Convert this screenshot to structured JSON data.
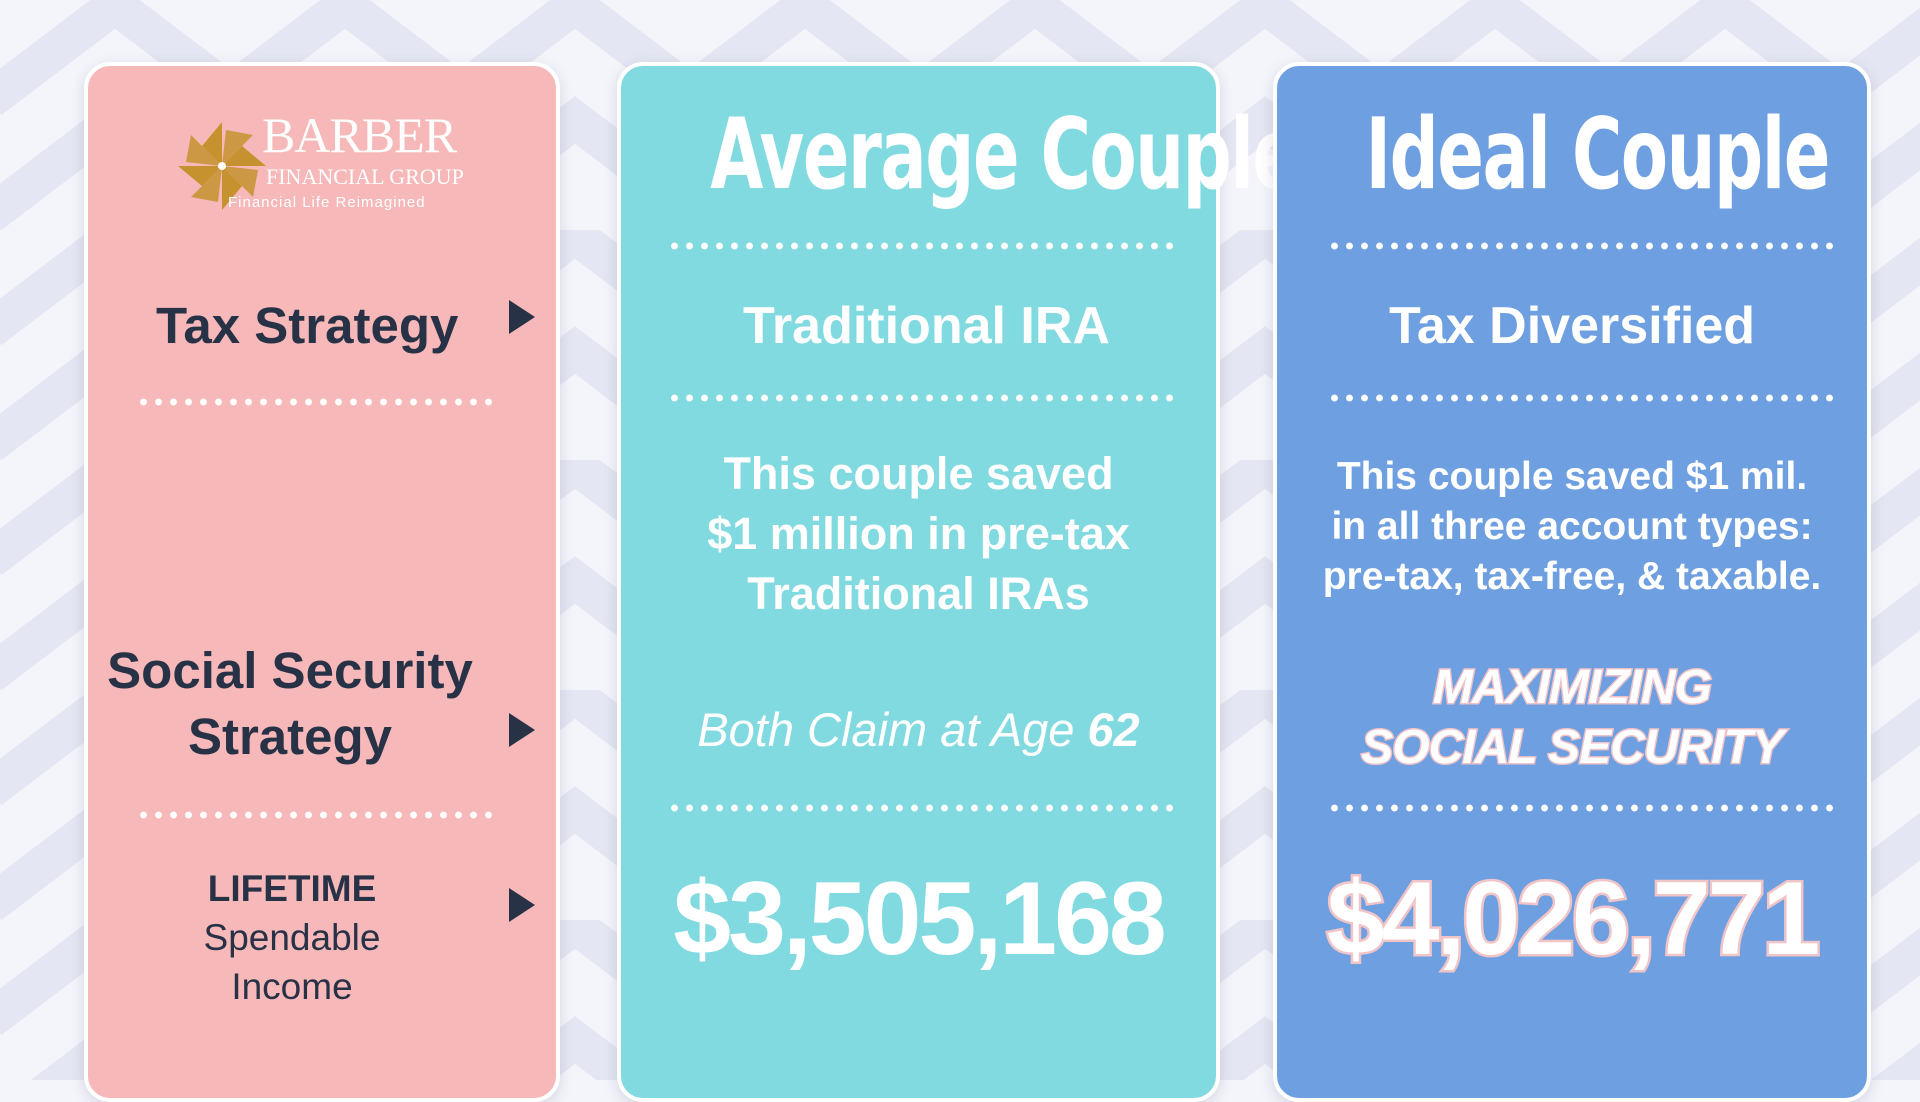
{
  "logo": {
    "name": "BARBER",
    "subname": "FINANCIAL GROUP",
    "tagline": "Financial Life Reimagined",
    "colors": {
      "gold": "#c6922f",
      "white": "#ffffff"
    }
  },
  "left_column": {
    "tax_strategy_label": "Tax Strategy",
    "social_security_line1": "Social Security",
    "social_security_line2": "Strategy",
    "lifetime_label": "LIFETIME",
    "spendable_label": "Spendable",
    "income_label": "Income",
    "arrow_icon": "triangle-right-icon"
  },
  "average_couple": {
    "title": "Average Couple",
    "tax_strategy": "Traditional IRA",
    "description_line1": "This couple saved",
    "description_line2": "$1 million in pre-tax",
    "description_line3": "Traditional IRAs",
    "claim_text": "Both Claim at Age ",
    "claim_age": "62",
    "lifetime_income": "$3,505,168"
  },
  "ideal_couple": {
    "title": "Ideal Couple",
    "tax_strategy": "Tax Diversified",
    "description_line1": "This couple saved $1 mil.",
    "description_line2": "in all three account types:",
    "description_line3": "pre-tax, tax-free, & taxable.",
    "social_security_line1": "MAXIMIZING",
    "social_security_line2": "SOCIAL SECURITY",
    "lifetime_income": "$4,026,771"
  },
  "colors": {
    "left_card": "#f6b8b8",
    "average_card": "#82dae1",
    "ideal_card": "#6e9fe0",
    "dark_text": "#283246",
    "background": "#f4f5fb",
    "chevron": "#e4e6f3"
  }
}
